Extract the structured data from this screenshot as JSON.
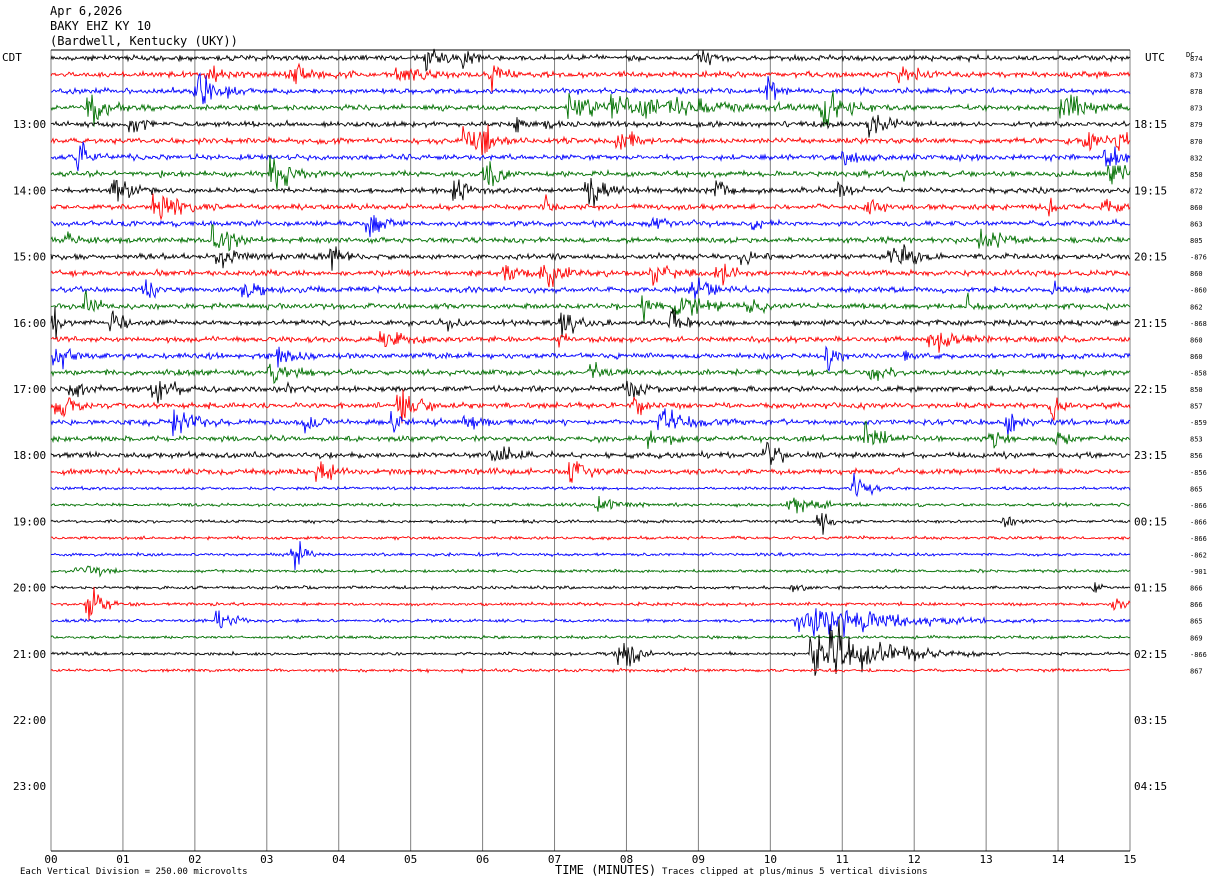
{
  "header": {
    "date": "Apr 6,2026",
    "station": "BAKY EHZ KY 10",
    "location": "(Bardwell, Kentucky (UKY))"
  },
  "left_zone": "CDT",
  "right_zone": "UTC",
  "dc_label": "DC",
  "footer": {
    "scale_note": "Each Vertical Division =  250.00 microvolts",
    "xlabel": "TIME (MINUTES)",
    "clip_note": "Traces clipped at plus/minus 5 vertical divisions"
  },
  "colors": {
    "cycle": [
      "#000000",
      "#ff0000",
      "#0000ff",
      "#007000"
    ],
    "grid": "#808080",
    "background": "#ffffff"
  },
  "chart_data": {
    "type": "line",
    "subtype": "helicorder",
    "x_range_minutes": [
      0,
      15
    ],
    "x_ticks": [
      "00",
      "01",
      "02",
      "03",
      "04",
      "05",
      "06",
      "07",
      "08",
      "09",
      "10",
      "11",
      "12",
      "13",
      "14",
      "15"
    ],
    "rows_per_hour": 4,
    "left_hour_labels": [
      "13:00",
      "14:00",
      "15:00",
      "16:00",
      "17:00",
      "18:00",
      "19:00",
      "20:00",
      "21:00",
      "22:00",
      "23:00"
    ],
    "right_hour_labels": [
      "18:15",
      "19:15",
      "20:15",
      "21:15",
      "22:15",
      "23:15",
      "00:15",
      "01:15",
      "02:15",
      "03:15",
      "04:15"
    ],
    "row_dc_offsets": [
      "874",
      "873",
      "878",
      "873",
      "879",
      "870",
      "832",
      "850",
      "872",
      "860",
      "863",
      "805",
      "-876",
      "860",
      "-860",
      "862",
      "-868",
      "860",
      "860",
      "-858",
      "850",
      "857",
      "-859",
      "853",
      "856",
      "-856",
      "865",
      "-866",
      "-866",
      "-866",
      "-862",
      "-901",
      "866",
      "866",
      "865",
      "869",
      "-866",
      "867"
    ]
  }
}
